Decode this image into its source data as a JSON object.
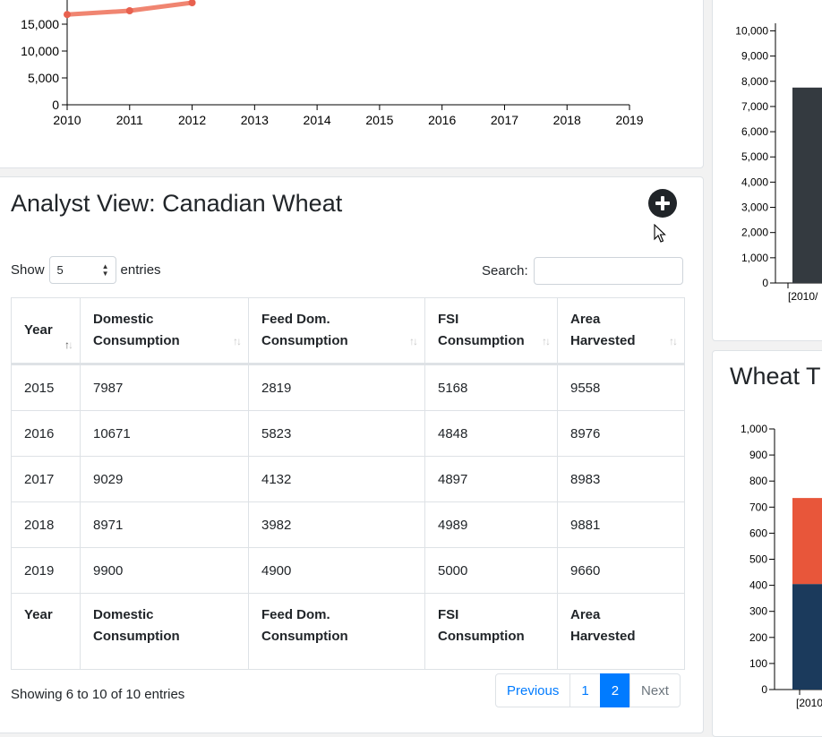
{
  "colors": {
    "line_series": "#f08571",
    "line_points": "#e8614f",
    "bar_dark": "#343a40",
    "bar_orange": "#e8563a",
    "bar_navy": "#1b3a5c",
    "accent_blue": "#007bff"
  },
  "analyst_view": {
    "title": "Analyst View: Canadian Wheat",
    "add_icon": "plus-circle-icon",
    "length": {
      "prefix": "Show",
      "selected": "5",
      "suffix": "entries"
    },
    "search": {
      "label": "Search:",
      "value": ""
    },
    "columns": [
      {
        "line1": "Year",
        "line2": ""
      },
      {
        "line1": "Domestic",
        "line2": "Consumption"
      },
      {
        "line1": "Feed Dom.",
        "line2": "Consumption"
      },
      {
        "line1": "FSI",
        "line2": "Consumption"
      },
      {
        "line1": "Area",
        "line2": "Harvested"
      }
    ],
    "rows": [
      [
        "2015",
        "7987",
        "2819",
        "5168",
        "9558"
      ],
      [
        "2016",
        "10671",
        "5823",
        "4848",
        "8976"
      ],
      [
        "2017",
        "9029",
        "4132",
        "4897",
        "8983"
      ],
      [
        "2018",
        "8971",
        "3982",
        "4989",
        "9881"
      ],
      [
        "2019",
        "9900",
        "4900",
        "5000",
        "9660"
      ]
    ],
    "info": "Showing 6 to 10 of 10 entries",
    "pagination": {
      "previous": "Previous",
      "page1": "1",
      "page2": "2",
      "next": "Next"
    }
  },
  "right_panel": {
    "title": "Wheat T"
  },
  "chart_data": [
    {
      "type": "line",
      "x": [
        "2010",
        "2011",
        "2012"
      ],
      "x_ticks": [
        "2010",
        "2011",
        "2012",
        "2013",
        "2014",
        "2015",
        "2016",
        "2017",
        "2018",
        "2019"
      ],
      "y_ticks": [
        "0",
        "5,000",
        "10,000",
        "15,000"
      ],
      "ylim": [
        0,
        20000
      ],
      "series": [
        {
          "values": [
            16800,
            17500,
            19000
          ]
        }
      ]
    },
    {
      "type": "bar",
      "categories": [
        "[2010/"
      ],
      "values": [
        7750
      ],
      "y_ticks": [
        "0",
        "1,000",
        "2,000",
        "3,000",
        "4,000",
        "5,000",
        "6,000",
        "7,000",
        "8,000",
        "9,000",
        "10,000"
      ],
      "ylim": [
        0,
        10300
      ]
    },
    {
      "type": "bar",
      "categories": [
        "[2010"
      ],
      "series": [
        {
          "values": [
            405
          ]
        },
        {
          "values": [
            330
          ]
        }
      ],
      "y_ticks": [
        "0",
        "100",
        "200",
        "300",
        "400",
        "500",
        "600",
        "700",
        "800",
        "900",
        "1,000"
      ],
      "ylim": [
        0,
        1000
      ]
    }
  ]
}
